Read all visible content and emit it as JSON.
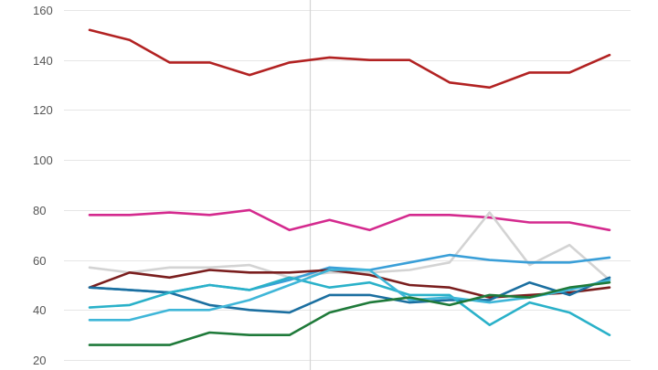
{
  "chart_data": {
    "type": "line",
    "title": "",
    "xlabel": "",
    "ylabel": "",
    "ylim": [
      16,
      164
    ],
    "yticks": [
      20,
      40,
      60,
      80,
      100,
      120,
      140,
      160
    ],
    "ytick_labels": [
      "20",
      "40",
      "60",
      "80",
      "100",
      "120",
      "140",
      "160"
    ],
    "grid": true,
    "legend": "none",
    "x": [
      0,
      1,
      2,
      3,
      4,
      5,
      6,
      7,
      8,
      9,
      10,
      11,
      12,
      13
    ],
    "vertical_marker_x": 5.5,
    "series": [
      {
        "color": "#b22222",
        "values": [
          152,
          148,
          139,
          139,
          134,
          139,
          141,
          140,
          140,
          131,
          129,
          135,
          135,
          142
        ]
      },
      {
        "color": "#d42a8e",
        "values": [
          78,
          78,
          79,
          78,
          80,
          72,
          76,
          72,
          78,
          78,
          77,
          75,
          75,
          72
        ]
      },
      {
        "color": "#d3d3d3",
        "values": [
          57,
          55,
          57,
          57,
          58,
          53,
          55,
          55,
          56,
          59,
          79,
          58,
          66,
          52
        ]
      },
      {
        "color": "#3a9fd8",
        "values": [
          49,
          48,
          47,
          50,
          48,
          52,
          57,
          56,
          59,
          62,
          60,
          59,
          59,
          61
        ]
      },
      {
        "color": "#7a1e1e",
        "values": [
          49,
          55,
          53,
          56,
          55,
          55,
          56,
          54,
          50,
          49,
          45,
          46,
          47,
          49
        ]
      },
      {
        "color": "#1b6fa0",
        "values": [
          49,
          48,
          47,
          42,
          40,
          39,
          46,
          46,
          43,
          44,
          44,
          51,
          46,
          53
        ]
      },
      {
        "color": "#2ab1c9",
        "values": [
          41,
          42,
          47,
          50,
          48,
          53,
          49,
          51,
          46,
          46,
          34,
          43,
          39,
          30
        ]
      },
      {
        "color": "#3fb6d8",
        "values": [
          36,
          36,
          40,
          40,
          44,
          50,
          56,
          56,
          44,
          45,
          43,
          45,
          48,
          52
        ]
      },
      {
        "color": "#1f7a3a",
        "values": [
          26,
          26,
          26,
          31,
          30,
          30,
          39,
          43,
          45,
          42,
          46,
          45,
          49,
          51
        ]
      }
    ]
  }
}
